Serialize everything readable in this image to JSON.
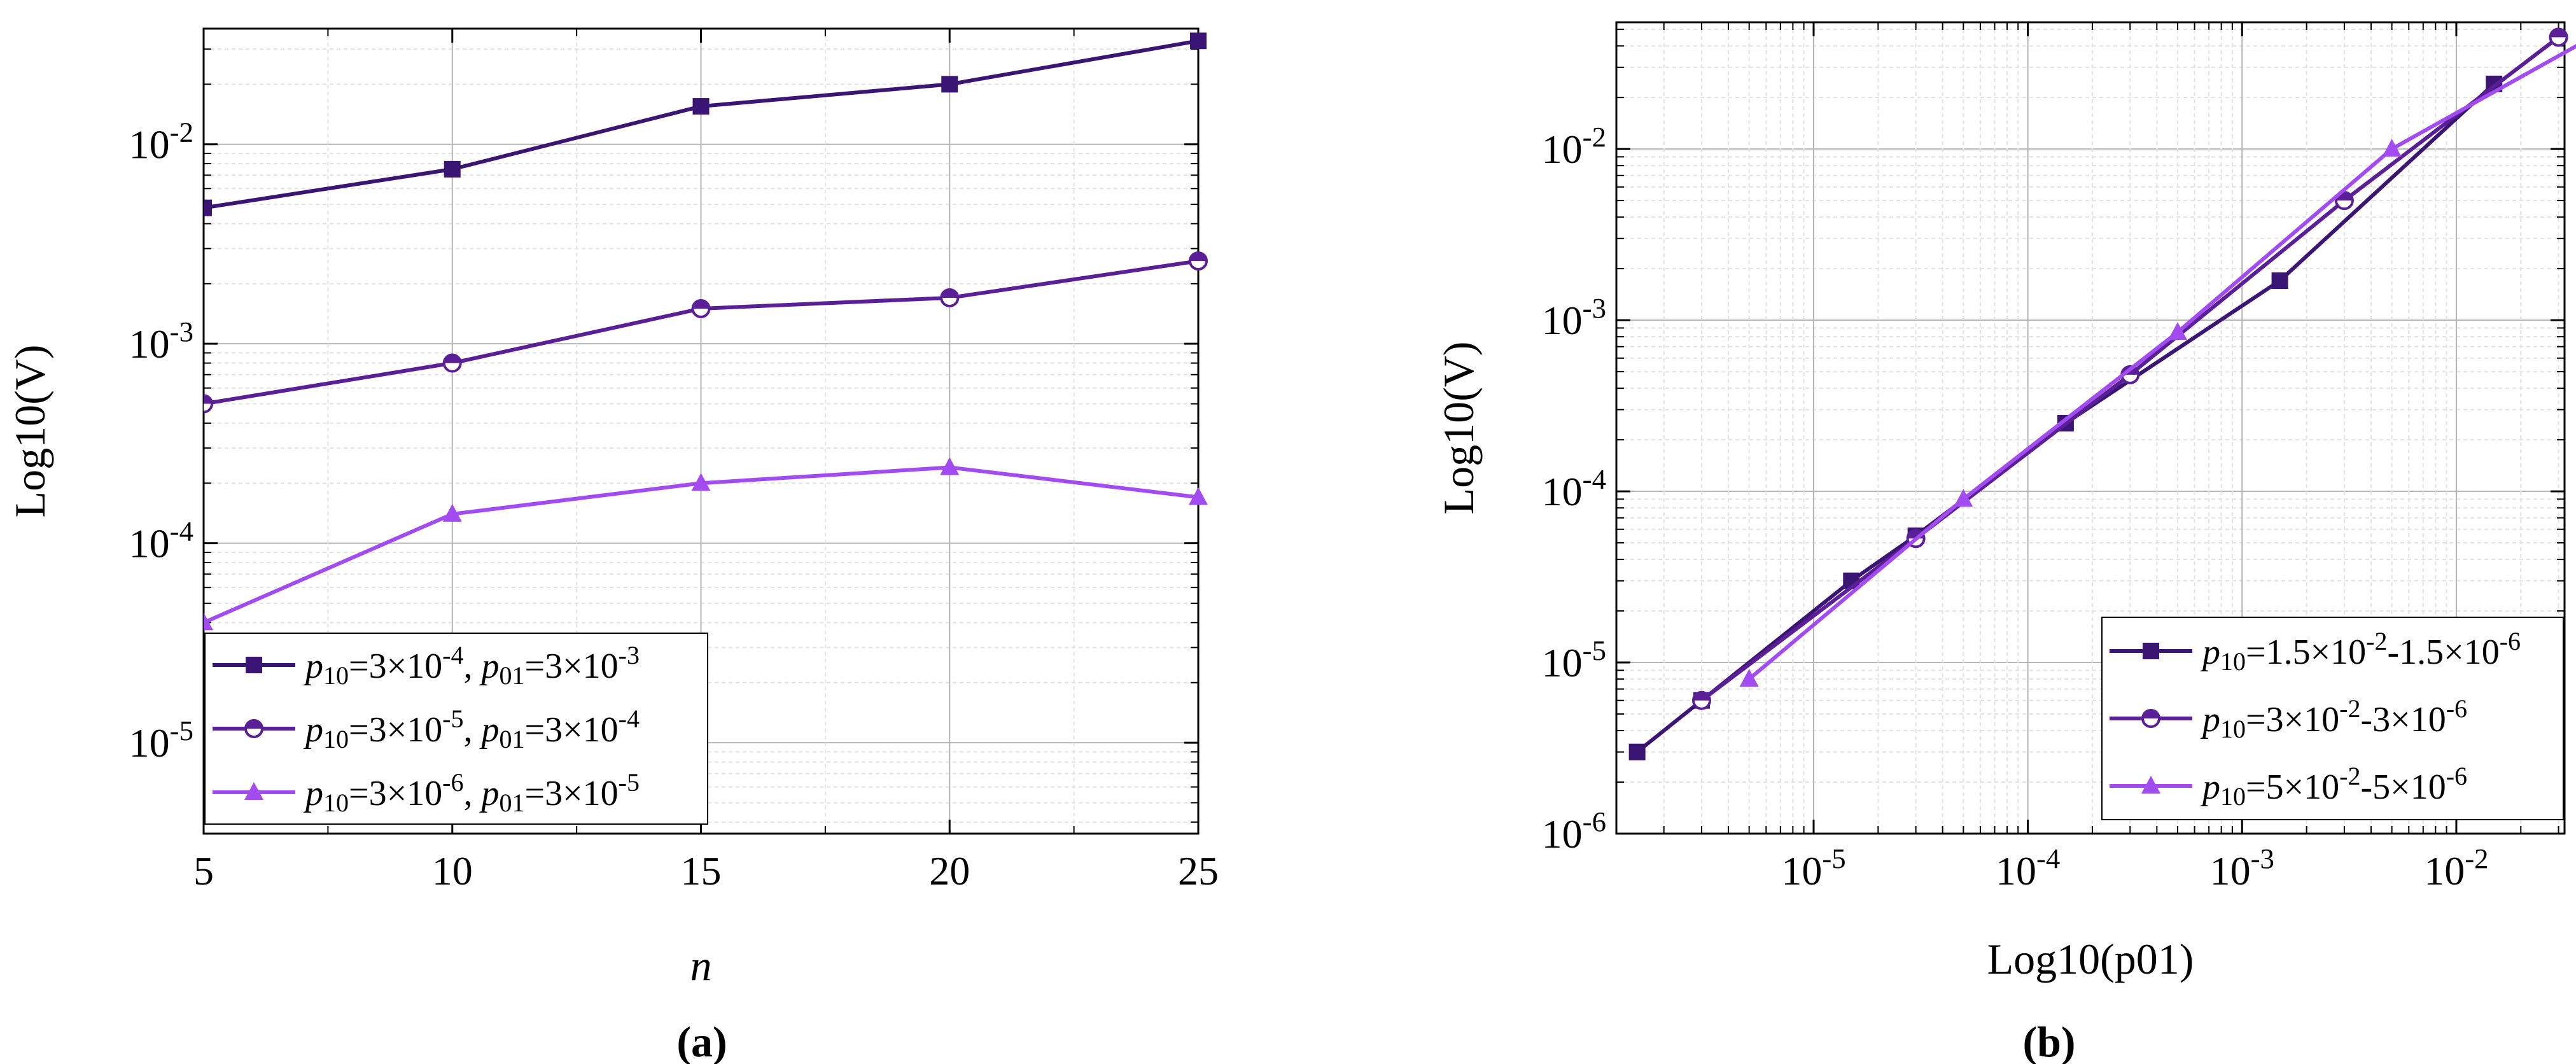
{
  "colors": {
    "series_dark": "#3b1573",
    "series_mid": "#5a1e96",
    "series_light": "#a24bf0"
  },
  "chart_data": [
    {
      "type": "line",
      "panel_label": "(a)",
      "xlabel": "n",
      "ylabel": "Log10(V)",
      "yscale": "log",
      "xlim": [
        5,
        25
      ],
      "ylim": [
        3.5e-06,
        0.038
      ],
      "xticks": [
        5,
        10,
        15,
        20,
        25
      ],
      "xtick_labels": [
        "5",
        "10",
        "15",
        "20",
        "25"
      ],
      "yticks": [
        1e-05,
        0.0001,
        0.001,
        0.01
      ],
      "ytick_labels": [
        {
          "base": "10",
          "exp": "-5"
        },
        {
          "base": "10",
          "exp": "-4"
        },
        {
          "base": "10",
          "exp": "-3"
        },
        {
          "base": "10",
          "exp": "-2"
        }
      ],
      "grid": true,
      "legend_position": "bottom-left",
      "series": [
        {
          "name": "p10=3×10-4, p01=3×10-3",
          "legend": [
            {
              "t": "p",
              "i": true
            },
            {
              "t": "10",
              "sub": true
            },
            {
              "t": "=3×10"
            },
            {
              "t": "-4",
              "sup": true
            },
            {
              "t": ", "
            },
            {
              "t": "p",
              "i": true
            },
            {
              "t": "01",
              "sub": true
            },
            {
              "t": "=3×10"
            },
            {
              "t": "-3",
              "sup": true
            }
          ],
          "color": "#3b1573",
          "marker": "square",
          "x": [
            5,
            10,
            15,
            20,
            25
          ],
          "y": [
            0.0048,
            0.0075,
            0.0155,
            0.02,
            0.033
          ]
        },
        {
          "name": "p10=3×10-5, p01=3×10-4",
          "legend": [
            {
              "t": "p",
              "i": true
            },
            {
              "t": "10",
              "sub": true
            },
            {
              "t": "=3×10"
            },
            {
              "t": "-5",
              "sup": true
            },
            {
              "t": ", "
            },
            {
              "t": "p",
              "i": true
            },
            {
              "t": "01",
              "sub": true
            },
            {
              "t": "=3×10"
            },
            {
              "t": "-4",
              "sup": true
            }
          ],
          "color": "#5a1e96",
          "marker": "half-circle",
          "x": [
            5,
            10,
            15,
            20,
            25
          ],
          "y": [
            0.0005,
            0.0008,
            0.0015,
            0.0017,
            0.0026
          ]
        },
        {
          "name": "p10=3×10-6, p01=3×10-5",
          "legend": [
            {
              "t": "p",
              "i": true
            },
            {
              "t": "10",
              "sub": true
            },
            {
              "t": "=3×10"
            },
            {
              "t": "-6",
              "sup": true
            },
            {
              "t": ", "
            },
            {
              "t": "p",
              "i": true
            },
            {
              "t": "01",
              "sub": true
            },
            {
              "t": "=3×10"
            },
            {
              "t": "-5",
              "sup": true
            }
          ],
          "color": "#a24bf0",
          "marker": "triangle",
          "x": [
            5,
            10,
            15,
            20,
            25
          ],
          "y": [
            4e-05,
            0.00014,
            0.0002,
            0.00024,
            0.00017
          ]
        }
      ]
    },
    {
      "type": "line",
      "panel_label": "(b)",
      "xlabel": "Log10(p01)",
      "ylabel": "Log10(V)",
      "xscale": "log",
      "yscale": "log",
      "xlim": [
        1.2e-06,
        0.032
      ],
      "ylim": [
        1e-06,
        0.055
      ],
      "xticks": [
        1e-05,
        0.0001,
        0.001,
        0.01
      ],
      "xtick_labels": [
        {
          "base": "10",
          "exp": "-5"
        },
        {
          "base": "10",
          "exp": "-4"
        },
        {
          "base": "10",
          "exp": "-3"
        },
        {
          "base": "10",
          "exp": "-2"
        }
      ],
      "yticks": [
        1e-06,
        1e-05,
        0.0001,
        0.001,
        0.01
      ],
      "ytick_labels": [
        {
          "base": "10",
          "exp": "-6"
        },
        {
          "base": "10",
          "exp": "-5"
        },
        {
          "base": "10",
          "exp": "-4"
        },
        {
          "base": "10",
          "exp": "-3"
        },
        {
          "base": "10",
          "exp": "-2"
        }
      ],
      "grid": true,
      "legend_position": "bottom-right",
      "series": [
        {
          "name": "p10=1.5×10-2-1.5×10-6",
          "legend": [
            {
              "t": "p",
              "i": true
            },
            {
              "t": "10",
              "sub": true
            },
            {
              "t": "=1.5×10"
            },
            {
              "t": "-2",
              "sup": true
            },
            {
              "t": "-1.5×10"
            },
            {
              "t": "-6",
              "sup": true
            }
          ],
          "color": "#3b1573",
          "marker": "square",
          "x": [
            1.5e-06,
            3e-06,
            1.5e-05,
            3e-05,
            0.00015,
            0.0015,
            0.015
          ],
          "y": [
            3e-06,
            6e-06,
            3e-05,
            5.5e-05,
            0.00025,
            0.0017,
            0.024
          ]
        },
        {
          "name": "p10=3×10-2-3×10-6",
          "legend": [
            {
              "t": "p",
              "i": true
            },
            {
              "t": "10",
              "sub": true
            },
            {
              "t": "=3×10"
            },
            {
              "t": "-2",
              "sup": true
            },
            {
              "t": "-3×10"
            },
            {
              "t": "-6",
              "sup": true
            }
          ],
          "color": "#5a1e96",
          "marker": "half-circle",
          "x": [
            3e-06,
            3e-05,
            0.0003,
            0.003,
            0.03
          ],
          "y": [
            6e-06,
            5.3e-05,
            0.00048,
            0.005,
            0.045
          ]
        },
        {
          "name": "p10=5×10-2-5×10-6",
          "legend": [
            {
              "t": "p",
              "i": true
            },
            {
              "t": "10",
              "sub": true
            },
            {
              "t": "=5×10"
            },
            {
              "t": "-2",
              "sup": true
            },
            {
              "t": "-5×10"
            },
            {
              "t": "-6",
              "sup": true
            }
          ],
          "color": "#a24bf0",
          "marker": "triangle",
          "x": [
            5e-06,
            5e-05,
            0.0005,
            0.005,
            0.05
          ],
          "y": [
            8e-06,
            9e-05,
            0.00085,
            0.01,
            0.05
          ]
        }
      ]
    }
  ]
}
